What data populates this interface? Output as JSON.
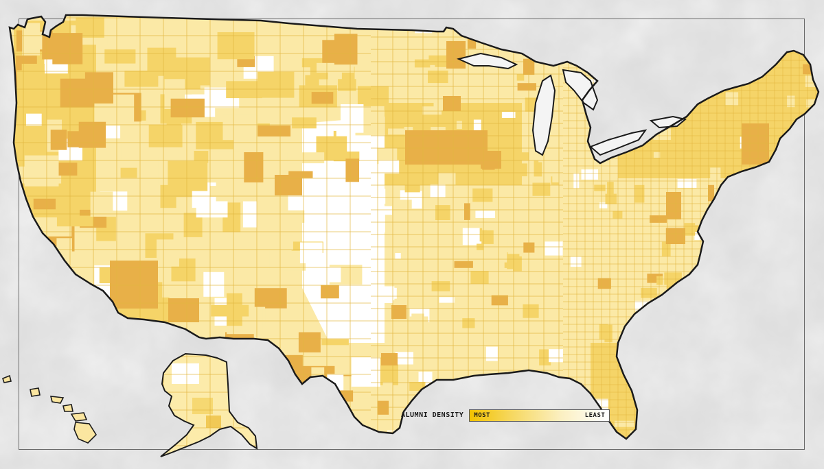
{
  "map": {
    "type": "choropleth",
    "region": "United States counties",
    "shading": "county-level alumni density",
    "insets": [
      "Alaska",
      "Hawaii"
    ],
    "colors": {
      "most": "#f2bd00",
      "high": "#e8b048",
      "medium": "#f5d468",
      "low": "#fbe9a6",
      "least": "#ffffff",
      "border": "#e0b030",
      "outline": "#1a1a1a"
    }
  },
  "legend": {
    "title": "ALUMNI DENSITY",
    "most_label": "MOST",
    "least_label": "LEAST",
    "gradient_from": "#f2c200",
    "gradient_to": "#ffffff"
  }
}
